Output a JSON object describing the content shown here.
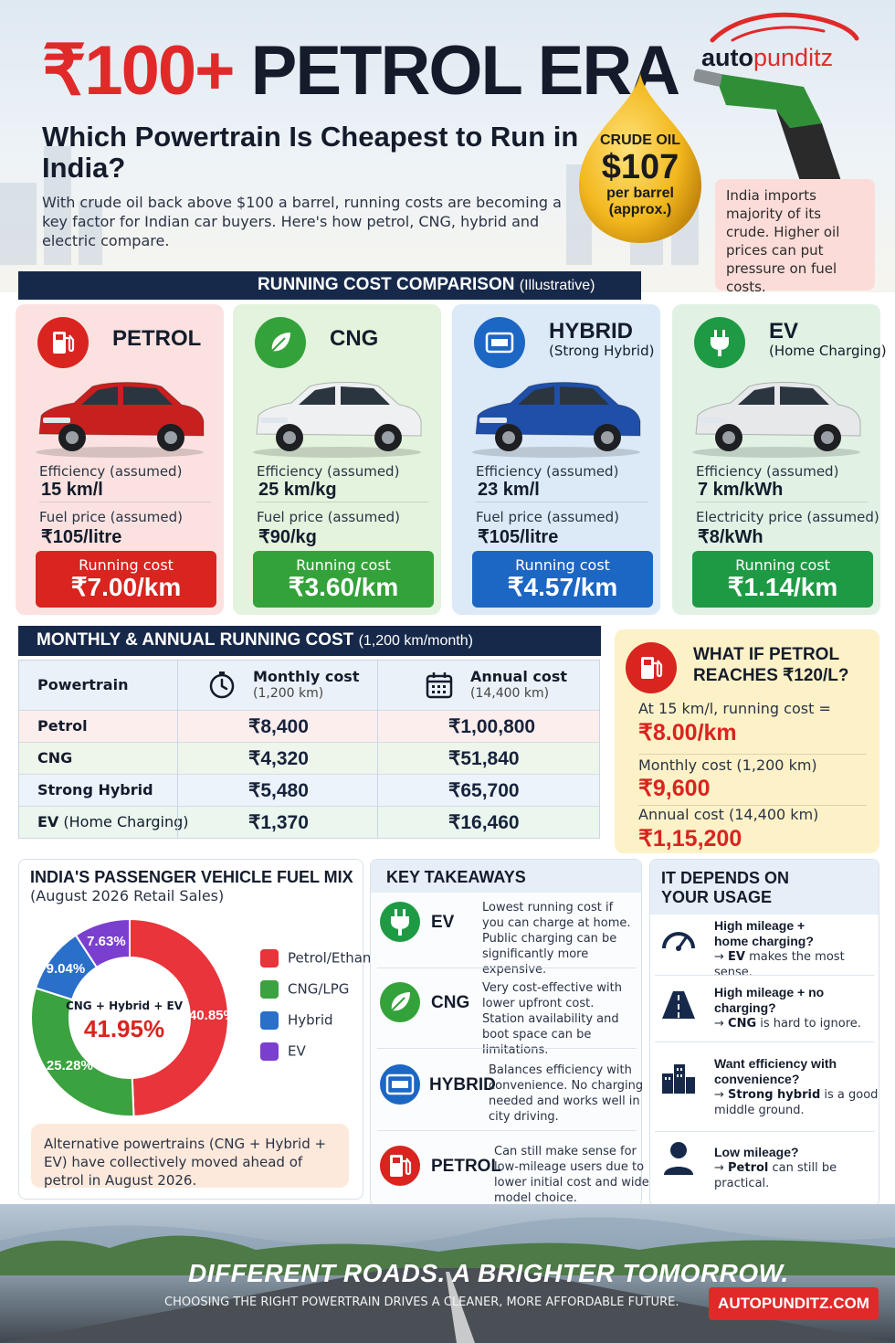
{
  "header": {
    "title_red": "₹100+",
    "title_dark": "PETROL ERA",
    "subtitle": "Which Powertrain Is Cheapest to Run in India?",
    "intro": "With crude oil back above $100 a barrel, running costs are becoming a key factor for Indian car buyers. Here's how petrol, CNG, hybrid and electric compare.",
    "brand_a": "auto",
    "brand_b": "punditz",
    "crude_label": "CRUDE OIL",
    "crude_price": "$107",
    "crude_unit": "per barrel",
    "crude_note": "(approx.)",
    "import_note": "India imports majority of its crude. Higher oil prices can put pressure on fuel costs."
  },
  "comparison": {
    "heading": "RUNNING COST COMPARISON",
    "heading_note": "(Illustrative)",
    "cards": [
      {
        "name": "PETROL",
        "sub": "",
        "eff_label": "Efficiency (assumed)",
        "eff": "15 km/l",
        "price_label": "Fuel price (assumed)",
        "price": "₹105/litre",
        "cost_label": "Running cost",
        "cost": "₹7.00/km",
        "bg": "#fbe2e0",
        "accent": "#d9241f",
        "car": "#c81f1f"
      },
      {
        "name": "CNG",
        "sub": "",
        "eff_label": "Efficiency (assumed)",
        "eff": "25 km/kg",
        "price_label": "Fuel price (assumed)",
        "price": "₹90/kg",
        "cost_label": "Running cost",
        "cost": "₹3.60/km",
        "bg": "#e3f3dd",
        "accent": "#34a23a",
        "car": "#eef0f2"
      },
      {
        "name": "HYBRID",
        "sub": "(Strong Hybrid)",
        "eff_label": "Efficiency (assumed)",
        "eff": "23 km/l",
        "price_label": "Fuel price (assumed)",
        "price": "₹105/litre",
        "cost_label": "Running cost",
        "cost": "₹4.57/km",
        "bg": "#dceaf8",
        "accent": "#1c66c4",
        "car": "#1f4fa8"
      },
      {
        "name": "EV",
        "sub": "(Home Charging)",
        "eff_label": "Efficiency (assumed)",
        "eff": "7 km/kWh",
        "price_label": "Electricity price (assumed)",
        "price": "₹8/kWh",
        "cost_label": "Running cost",
        "cost": "₹1.14/km",
        "bg": "#e1f2e4",
        "accent": "#1f9a44",
        "car": "#e6e8ea"
      }
    ]
  },
  "monthly": {
    "heading": "MONTHLY & ANNUAL RUNNING COST",
    "heading_note": "(1,200 km/month)",
    "col_powertrain": "Powertrain",
    "col_monthly": "Monthly cost",
    "col_monthly_note": "(1,200 km)",
    "col_annual": "Annual cost",
    "col_annual_note": "(14,400 km)",
    "rows": [
      {
        "name": "Petrol",
        "name_note": "",
        "monthly": "₹8,400",
        "annual": "₹1,00,800",
        "bg": "#fdeeee"
      },
      {
        "name": "CNG",
        "name_note": "",
        "monthly": "₹4,320",
        "annual": "₹51,840",
        "bg": "#eef6ec"
      },
      {
        "name": "Strong Hybrid",
        "name_note": "",
        "monthly": "₹5,480",
        "annual": "₹65,700",
        "bg": "#ecf3fb"
      },
      {
        "name": "EV",
        "name_note": "(Home Charging)",
        "monthly": "₹1,370",
        "annual": "₹16,460",
        "bg": "#eaf6ee"
      }
    ]
  },
  "what_if": {
    "title_line1": "WHAT IF PETROL",
    "title_line2": "REACHES ₹120/L?",
    "line1_label": "At 15 km/l, running cost =",
    "line1_value": "₹8.00/km",
    "line2_label": "Monthly cost (1,200 km)",
    "line2_value": "₹9,600",
    "line3_label": "Annual cost (14,400 km)",
    "line3_value": "₹1,15,200"
  },
  "fuel_mix": {
    "heading": "INDIA'S PASSENGER VEHICLE FUEL MIX",
    "subheading": "(August 2026 Retail Sales)",
    "center_label": "CNG + Hybrid + EV",
    "center_value": "41.95%",
    "note": "Alternative powertrains (CNG + Hybrid + EV) have collectively moved ahead of petrol  in August 2026."
  },
  "chart_data": {
    "type": "pie",
    "title": "INDIA'S PASSENGER VEHICLE FUEL MIX",
    "subtitle": "(August 2026 Retail Sales)",
    "categories": [
      "Petrol/Ethanol",
      "CNG/LPG",
      "Hybrid",
      "EV"
    ],
    "values": [
      40.85,
      25.28,
      9.04,
      7.63
    ],
    "labels": [
      "40.85%",
      "25.28%",
      "9.04%",
      "7.63%"
    ],
    "colors": [
      "#e8343a",
      "#3aa23f",
      "#2a6fc9",
      "#7b3fd0"
    ],
    "legend": "right"
  },
  "takeaways": {
    "heading": "KEY TAKEAWAYS",
    "items": [
      {
        "name": "EV",
        "text": "Lowest running cost if you can charge at home. Public charging can be significantly more expensive.",
        "color": "#1f9a44"
      },
      {
        "name": "CNG",
        "text": "Very cost-effective with lower upfront cost. Station availability and boot space can be limitations.",
        "color": "#34a23a"
      },
      {
        "name": "HYBRID",
        "text": "Balances efficiency with convenience. No charging needed and works well in city driving.",
        "color": "#1c66c4"
      },
      {
        "name": "PETROL",
        "text": "Can still make sense for low-mileage users due to lower initial cost and wide model choice.",
        "color": "#d9241f"
      }
    ]
  },
  "usage": {
    "heading_line1": "IT DEPENDS ON",
    "heading_line2": "YOUR USAGE",
    "items": [
      {
        "q": "High mileage + home charging?",
        "arrow": "→ ",
        "bold": "EV",
        "rest": " makes the most sense."
      },
      {
        "q": "High mileage + no charging?",
        "arrow": "→ ",
        "bold": "CNG",
        "rest": " is hard to ignore."
      },
      {
        "q": "Want efficiency with convenience?",
        "arrow": "→ ",
        "bold": "Strong hybrid",
        "rest": " is a good middle ground."
      },
      {
        "q": "Low mileage?",
        "arrow": "→ ",
        "bold": "Petrol",
        "rest": " can still be practical."
      }
    ]
  },
  "footer": {
    "tagline": "DIFFERENT ROADS. A BRIGHTER TOMORROW.",
    "subline": "CHOOSING THE RIGHT POWERTRAIN DRIVES A CLEANER, MORE AFFORDABLE FUTURE.",
    "cta": "AUTOPUNDITZ.COM"
  }
}
